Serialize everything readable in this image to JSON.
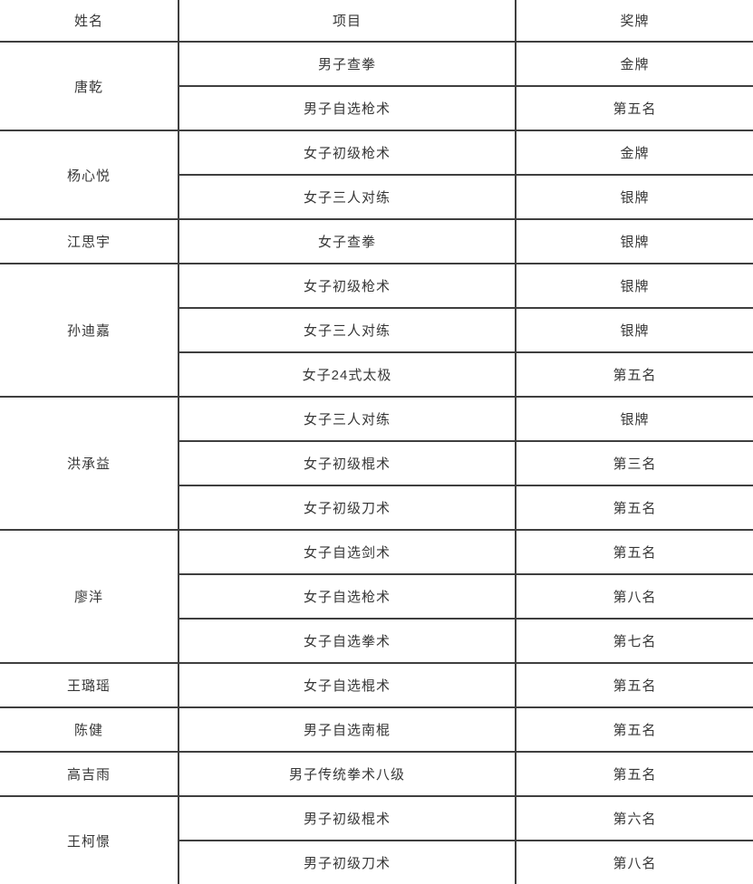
{
  "table": {
    "headers": [
      "姓名",
      "项目",
      "奖牌"
    ],
    "groups": [
      {
        "name": "唐乾",
        "entries": [
          {
            "event": "男子查拳",
            "medal": "金牌"
          },
          {
            "event": "男子自选枪术",
            "medal": "第五名"
          }
        ]
      },
      {
        "name": "杨心悦",
        "entries": [
          {
            "event": "女子初级枪术",
            "medal": "金牌"
          },
          {
            "event": "女子三人对练",
            "medal": "银牌"
          }
        ]
      },
      {
        "name": "江思宇",
        "entries": [
          {
            "event": "女子查拳",
            "medal": "银牌"
          }
        ]
      },
      {
        "name": "孙迪嘉",
        "entries": [
          {
            "event": "女子初级枪术",
            "medal": "银牌"
          },
          {
            "event": "女子三人对练",
            "medal": "银牌"
          },
          {
            "event": "女子24式太极",
            "medal": "第五名"
          }
        ]
      },
      {
        "name": "洪承益",
        "entries": [
          {
            "event": "女子三人对练",
            "medal": "银牌"
          },
          {
            "event": "女子初级棍术",
            "medal": "第三名"
          },
          {
            "event": "女子初级刀术",
            "medal": "第五名"
          }
        ]
      },
      {
        "name": "廖洋",
        "entries": [
          {
            "event": "女子自选剑术",
            "medal": "第五名"
          },
          {
            "event": "女子自选枪术",
            "medal": "第八名"
          },
          {
            "event": "女子自选拳术",
            "medal": "第七名"
          }
        ]
      },
      {
        "name": "王璐瑶",
        "entries": [
          {
            "event": "女子自选棍术",
            "medal": "第五名"
          }
        ]
      },
      {
        "name": "陈健",
        "entries": [
          {
            "event": "男子自选南棍",
            "medal": "第五名"
          }
        ]
      },
      {
        "name": "高吉雨",
        "entries": [
          {
            "event": "男子传统拳术八级",
            "medal": "第五名"
          }
        ]
      },
      {
        "name": "王柯憬",
        "entries": [
          {
            "event": "男子初级棍术",
            "medal": "第六名"
          },
          {
            "event": "男子初级刀术",
            "medal": "第八名"
          }
        ]
      }
    ],
    "colors": {
      "text": "#373737",
      "border": "#3f3f3f",
      "background": "#ffffff"
    }
  }
}
